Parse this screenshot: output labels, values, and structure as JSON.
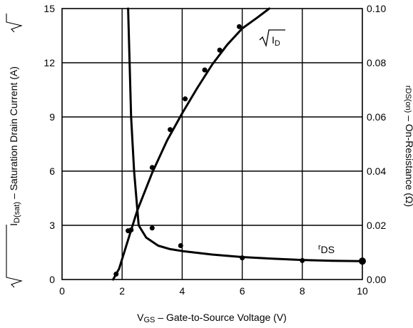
{
  "chart_data": {
    "type": "line",
    "title": "",
    "xlabel_main": "V",
    "xlabel_sub": "GS",
    "xlabel_rest": " – Gate-to-Source Voltage (V)",
    "ylabel_left_pre": "I",
    "ylabel_left_sub": "D(sat)",
    "ylabel_left_rest": " – Saturation Drain Current (A)",
    "ylabel_right_pre": "r",
    "ylabel_right_sub": "DS(on)",
    "ylabel_right_rest": " – On-Resistance (Ω)",
    "xlim": [
      0,
      10
    ],
    "ylim_left": [
      0,
      15
    ],
    "ylim_right": [
      0,
      0.1
    ],
    "x_ticks": [
      "0",
      "2",
      "4",
      "6",
      "8",
      "10"
    ],
    "x_tick_values": [
      0,
      2,
      4,
      6,
      8,
      10
    ],
    "y_left_ticks": [
      "0",
      "3",
      "6",
      "9",
      "12",
      "15"
    ],
    "y_left_tick_values": [
      0,
      3,
      6,
      9,
      12,
      15
    ],
    "y_right_ticks": [
      "0.00",
      "0.02",
      "0.04",
      "0.06",
      "0.08",
      "0.10"
    ],
    "y_right_tick_values": [
      0,
      0.02,
      0.04,
      0.06,
      0.08,
      0.1
    ],
    "grid": true,
    "grid_x": [
      2,
      4,
      6,
      8
    ],
    "grid_y": [
      3,
      6,
      9,
      12
    ],
    "series": [
      {
        "name": "√ID",
        "label_pre": "I",
        "label_sub": "D",
        "axis": "left",
        "line": [
          [
            1.7,
            0
          ],
          [
            1.9,
            0.6
          ],
          [
            2.2,
            2.2
          ],
          [
            2.5,
            3.8
          ],
          [
            3.0,
            5.9
          ],
          [
            3.5,
            7.7
          ],
          [
            4.0,
            9.2
          ],
          [
            4.5,
            10.6
          ],
          [
            5.0,
            11.9
          ],
          [
            5.5,
            13.0
          ],
          [
            6.0,
            13.9
          ],
          [
            6.5,
            14.5
          ],
          [
            6.9,
            15.0
          ]
        ],
        "points": [
          [
            1.8,
            0.3
          ],
          [
            2.2,
            2.7
          ],
          [
            3.0,
            6.2
          ],
          [
            3.6,
            8.3
          ],
          [
            4.1,
            10.0
          ],
          [
            4.75,
            11.6
          ],
          [
            5.25,
            12.7
          ],
          [
            5.9,
            14.0
          ]
        ]
      },
      {
        "name": "rDS",
        "label_pre": "r",
        "label_sub": "DS",
        "axis": "right",
        "line": [
          [
            2.2,
            0.1
          ],
          [
            2.25,
            0.08
          ],
          [
            2.3,
            0.06
          ],
          [
            2.4,
            0.04
          ],
          [
            2.55,
            0.02
          ],
          [
            2.8,
            0.0155
          ],
          [
            3.2,
            0.0125
          ],
          [
            3.6,
            0.0112
          ],
          [
            4.0,
            0.0105
          ],
          [
            5.0,
            0.0092
          ],
          [
            6.0,
            0.0083
          ],
          [
            7.0,
            0.0077
          ],
          [
            8.0,
            0.0072
          ],
          [
            9.0,
            0.0069
          ],
          [
            10.0,
            0.0068
          ]
        ],
        "points": [
          [
            2.3,
            0.0183
          ],
          [
            3.0,
            0.019
          ],
          [
            3.95,
            0.0125
          ],
          [
            6.0,
            0.008
          ],
          [
            8.0,
            0.007
          ],
          [
            10.0,
            0.0068
          ]
        ]
      }
    ]
  }
}
